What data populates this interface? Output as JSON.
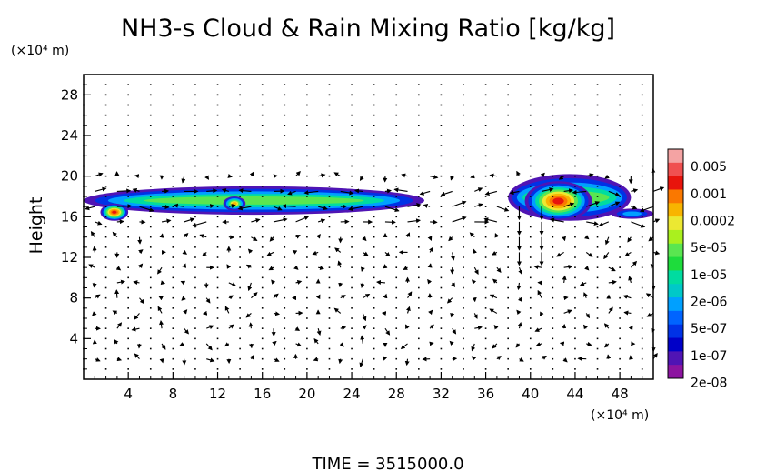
{
  "chart_data": {
    "type": "heatmap",
    "title": "NH3-s Cloud & Rain Mixing Ratio [kg/kg]",
    "ylabel": "Height",
    "xunit": "(×10⁴ m)",
    "yunit": "(×10⁴ m)",
    "footer": "TIME = 3515000.0",
    "xlim": [
      0,
      51
    ],
    "ylim": [
      0,
      30
    ],
    "x_ticks": [
      4,
      8,
      12,
      16,
      20,
      24,
      28,
      32,
      36,
      40,
      44,
      48
    ],
    "y_ticks": [
      4,
      8,
      12,
      16,
      20,
      24,
      28
    ],
    "colorbar": {
      "scale": "log",
      "labels": [
        "0.005",
        "0.001",
        "0.0002",
        "5e-05",
        "1e-05",
        "2e-06",
        "5e-07",
        "1e-07",
        "2e-08"
      ],
      "colors": [
        "#f4a3a3",
        "#f05050",
        "#e8140c",
        "#fa7800",
        "#f8b400",
        "#ece832",
        "#aaf01e",
        "#5ae650",
        "#1edc3c",
        "#00dca0",
        "#00c8c8",
        "#00a0ff",
        "#0064ff",
        "#0032e6",
        "#0000c8",
        "#5014b4",
        "#8c14a0"
      ]
    },
    "cloud_regions": [
      {
        "name": "band-west",
        "x": [
          0,
          30.5
        ],
        "y": [
          16.2,
          19.0
        ],
        "peak": "5e-05"
      },
      {
        "name": "core-west-a",
        "x": [
          1.5,
          4.0
        ],
        "y": [
          15.6,
          17.3
        ],
        "peak": "0.001"
      },
      {
        "name": "core-west-b",
        "x": [
          12.5,
          14.5
        ],
        "y": [
          16.6,
          18.0
        ],
        "peak": "0.0002"
      },
      {
        "name": "band-east",
        "x": [
          38,
          49
        ],
        "y": [
          15.6,
          20.2
        ],
        "peak": "5e-05"
      },
      {
        "name": "core-east-a",
        "x": [
          39.5,
          45.5
        ],
        "y": [
          15.6,
          19.5
        ],
        "peak": "0.001"
      },
      {
        "name": "patch-east",
        "x": [
          47.2,
          51
        ],
        "y": [
          15.8,
          16.8
        ],
        "peak": "5e-06"
      }
    ],
    "wind_vectors": "present"
  }
}
